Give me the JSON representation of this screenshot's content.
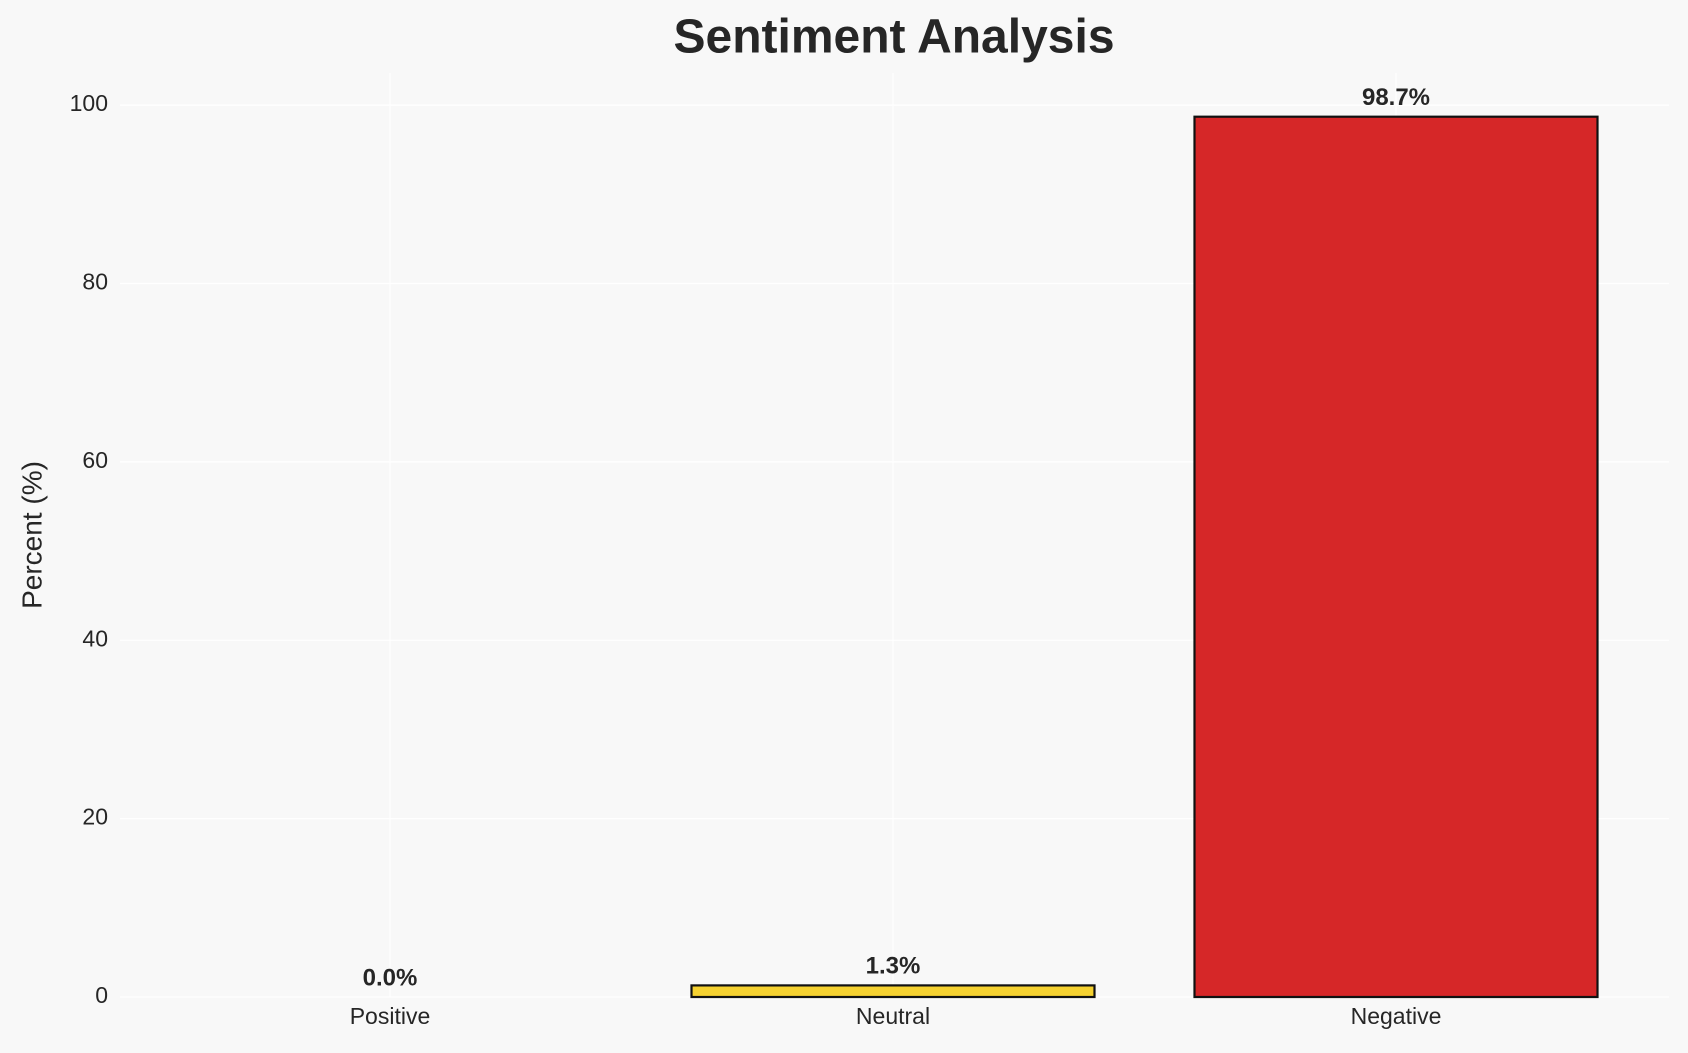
{
  "chart_data": {
    "type": "bar",
    "title": "Sentiment Analysis",
    "y_label": "Percent (%)",
    "categories": [
      "Positive",
      "Neutral",
      "Negative"
    ],
    "values": [
      0.0,
      1.3,
      98.7
    ],
    "value_labels": [
      "0.0%",
      "1.3%",
      "98.7%"
    ],
    "colors": [
      "#2ca02c",
      "#f5d130",
      "#d62728"
    ],
    "edge_color": "#111111",
    "ylim": [
      0,
      103.6
    ],
    "yticks": [
      0,
      20,
      40,
      60,
      80,
      100
    ],
    "grid": true
  }
}
